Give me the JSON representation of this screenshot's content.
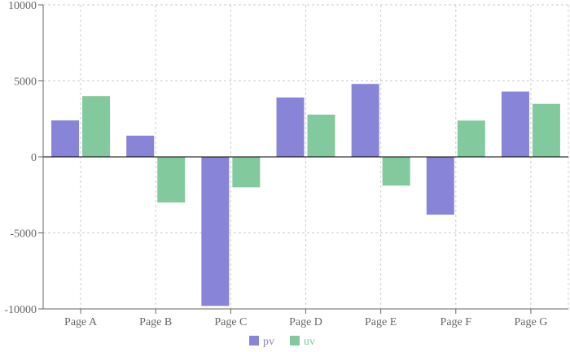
{
  "chart_data": {
    "type": "bar",
    "categories": [
      "Page A",
      "Page B",
      "Page C",
      "Page D",
      "Page E",
      "Page F",
      "Page G"
    ],
    "series": [
      {
        "name": "pv",
        "color": "#8884d8",
        "values": [
          2400,
          1398,
          -9800,
          3908,
          4800,
          -3800,
          4300
        ]
      },
      {
        "name": "uv",
        "color": "#82ca9d",
        "values": [
          4000,
          -3000,
          -2000,
          2780,
          -1890,
          2390,
          3490
        ]
      }
    ],
    "yticks": [
      -10000,
      -5000,
      0,
      5000,
      10000
    ],
    "ylim": [
      -10000,
      10000
    ],
    "grid": true,
    "legend_position": "bottom-center",
    "title": "",
    "xlabel": "",
    "ylabel": ""
  }
}
